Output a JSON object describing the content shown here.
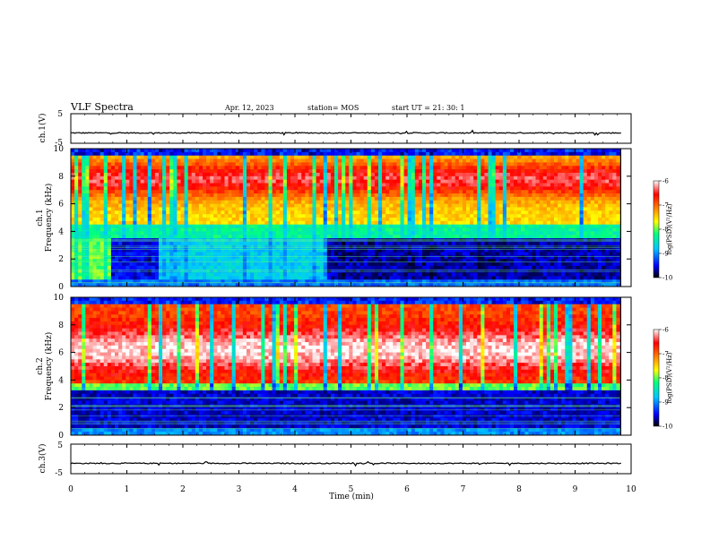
{
  "header": {
    "title": "VLF Spectra",
    "date": "Apr. 12, 2023",
    "station": "station= MOS",
    "start": "start  UT =   21: 30: 1"
  },
  "chart_data": [
    {
      "type": "line",
      "panel": "ch1-waveform",
      "ylabel": "ch.1(V)",
      "ylim": [
        -5,
        5
      ],
      "yticks": [
        "5",
        "-5"
      ],
      "xlim": [
        0,
        10
      ],
      "series_value_approx": -1.5
    },
    {
      "type": "heatmap",
      "panel": "ch1-spectrogram",
      "ylabel_line1": "ch.1",
      "ylabel_line2": "Frequency (kHz)",
      "ylim": [
        0,
        10
      ],
      "yticks": [
        "0",
        "2",
        "4",
        "6",
        "8",
        "10"
      ],
      "xlim": [
        0,
        9.8
      ],
      "colorbar": {
        "label": "log(PSD)(V²/Hz)",
        "range": [
          -10,
          -6
        ],
        "ticks": [
          "-6",
          "-7",
          "-8",
          "-9",
          "-10"
        ]
      }
    },
    {
      "type": "heatmap",
      "panel": "ch2-spectrogram",
      "ylabel_line1": "ch.2",
      "ylabel_line2": "Frequency (kHz)",
      "ylim": [
        0,
        10
      ],
      "yticks": [
        "0",
        "2",
        "4",
        "6",
        "8",
        "10"
      ],
      "xlim": [
        0,
        9.8
      ],
      "colorbar": {
        "label": "log(PSD)(V²/Hz)",
        "range": [
          -10,
          -6
        ],
        "ticks": [
          "-6",
          "-7",
          "-8",
          "-9",
          "-10"
        ]
      }
    },
    {
      "type": "line",
      "panel": "ch3-waveform",
      "ylabel": "ch.3(V)",
      "ylim": [
        -5,
        5
      ],
      "yticks": [
        "5",
        "-5"
      ],
      "xlim": [
        0,
        10
      ],
      "series_value_approx": -1.5
    }
  ],
  "xaxis": {
    "label": "Time  (min)",
    "ticks": [
      "0",
      "1",
      "2",
      "3",
      "4",
      "5",
      "6",
      "7",
      "8",
      "9",
      "10"
    ]
  },
  "colors": {
    "colormap": [
      "#000000",
      "#0000ff",
      "#00c8ff",
      "#00ff80",
      "#ffff00",
      "#ff8000",
      "#ff0000",
      "#ffffff"
    ]
  }
}
